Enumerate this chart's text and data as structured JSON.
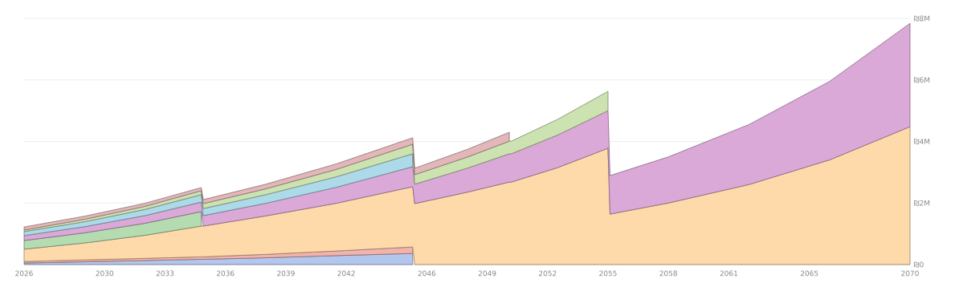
{
  "chart_data": {
    "type": "area",
    "stacked": true,
    "grid": "y",
    "x": [
      2026,
      2029,
      2032,
      2034.8,
      2034.9,
      2038,
      2041.5,
      2045.3,
      2045.4,
      2048,
      2050.1,
      2050.2,
      2052.5,
      2055.0,
      2055.1,
      2058,
      2062,
      2066,
      2070
    ],
    "xlim": [
      2026,
      2070
    ],
    "xticks": [
      2026,
      2030,
      2033,
      2036,
      2039,
      2042,
      2046,
      2049,
      2052,
      2055,
      2058,
      2061,
      2065,
      2070
    ],
    "ylim": [
      0,
      8
    ],
    "yticks": [
      {
        "value": 0,
        "label": "₪0"
      },
      {
        "value": 2,
        "label": "₪2M"
      },
      {
        "value": 4,
        "label": "₪4M"
      },
      {
        "value": 6,
        "label": "₪6M"
      },
      {
        "value": 8,
        "label": "₪8M"
      }
    ],
    "series": [
      {
        "color": "#b3c6ee",
        "values": [
          0.05,
          0.09,
          0.13,
          0.17,
          0.17,
          0.22,
          0.29,
          0.36,
          null,
          null,
          null,
          null,
          null,
          null,
          null,
          null,
          null,
          null,
          null
        ]
      },
      {
        "color": "#f3b3ad",
        "values": [
          0.05,
          0.06,
          0.07,
          0.08,
          0.08,
          0.11,
          0.15,
          0.21,
          null,
          null,
          null,
          null,
          null,
          null,
          null,
          null,
          null,
          null,
          null
        ]
      },
      {
        "color": "#fed9aa",
        "values": [
          0.4,
          0.55,
          0.75,
          1.0,
          1.0,
          1.25,
          1.55,
          1.96,
          1.98,
          2.35,
          2.68,
          2.68,
          3.15,
          3.78,
          1.64,
          2.0,
          2.6,
          3.4,
          4.48
        ]
      },
      {
        "color": "#b5dbb0",
        "values": [
          0.28,
          0.33,
          0.39,
          0.47,
          null,
          null,
          null,
          null,
          null,
          null,
          null,
          null,
          null,
          null,
          null,
          null,
          null,
          null,
          null
        ]
      },
      {
        "color": "#dba9d8",
        "values": [
          0.16,
          0.2,
          0.25,
          0.31,
          0.34,
          0.41,
          0.52,
          0.65,
          0.63,
          0.78,
          0.92,
          0.92,
          1.06,
          1.22,
          1.25,
          1.5,
          1.95,
          2.55,
          3.36
        ]
      },
      {
        "color": "#acdae9",
        "values": [
          0.13,
          0.16,
          0.2,
          0.24,
          0.23,
          0.28,
          0.34,
          0.42,
          null,
          null,
          null,
          null,
          null,
          null,
          null,
          null,
          null,
          null,
          null
        ]
      },
      {
        "color": "#cce2b0",
        "values": [
          0.05,
          0.08,
          0.1,
          0.13,
          0.16,
          0.19,
          0.24,
          0.31,
          0.31,
          0.36,
          0.41,
          0.41,
          0.51,
          0.63,
          null,
          null,
          null,
          null,
          null
        ]
      },
      {
        "color": "#e3b7b9",
        "values": [
          0.1,
          0.1,
          0.1,
          0.1,
          0.13,
          0.15,
          0.18,
          0.21,
          0.21,
          0.25,
          0.29,
          null,
          null,
          null,
          null,
          null,
          null,
          null,
          null
        ]
      }
    ]
  }
}
